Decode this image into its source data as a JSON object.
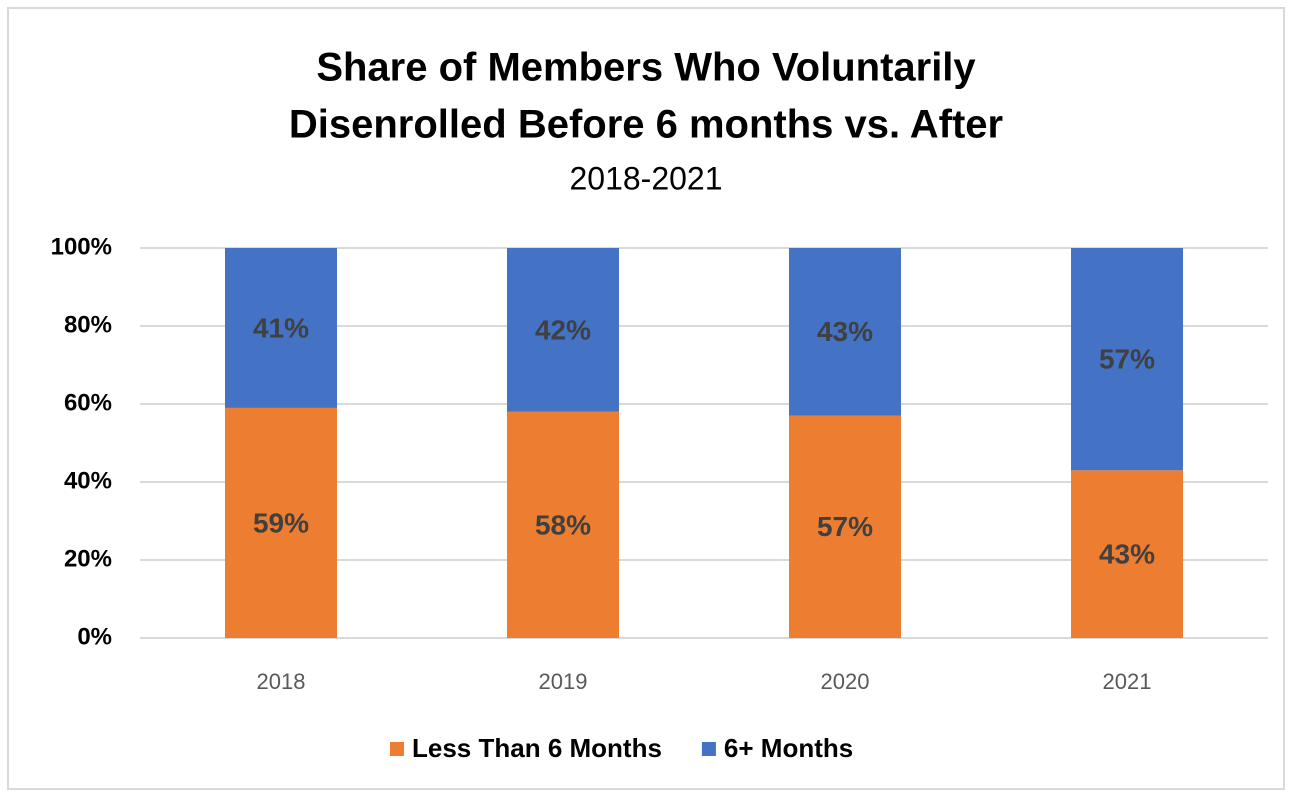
{
  "chart_data": {
    "type": "stacked_bar",
    "title": [
      "Share of Members Who Voluntarily",
      "Disenrolled Before 6 months vs. After"
    ],
    "subtitle": "2018-2021",
    "categories": [
      "2018",
      "2019",
      "2020",
      "2021"
    ],
    "series": [
      {
        "name": "Less Than 6 Months",
        "color": "#ed7d31",
        "values": [
          59,
          58,
          57,
          43
        ],
        "value_labels": [
          "59%",
          "58%",
          "57%",
          "43%"
        ]
      },
      {
        "name": "6+ Months",
        "color": "#4472c4",
        "values": [
          41,
          42,
          43,
          57
        ],
        "value_labels": [
          "41%",
          "42%",
          "43%",
          "57%"
        ]
      }
    ],
    "ylim": [
      0,
      100
    ],
    "yticks": [
      {
        "value": 0,
        "label": "0%"
      },
      {
        "value": 20,
        "label": "20%"
      },
      {
        "value": 40,
        "label": "40%"
      },
      {
        "value": 60,
        "label": "60%"
      },
      {
        "value": 80,
        "label": "80%"
      },
      {
        "value": 100,
        "label": "100%"
      }
    ],
    "grid": true,
    "legend": "bottom"
  }
}
